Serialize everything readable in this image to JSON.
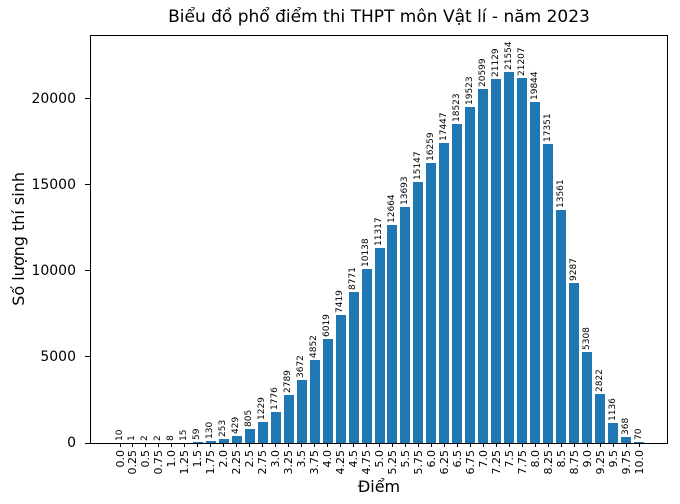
{
  "chart_data": {
    "type": "bar",
    "title": "Biểu đồ phổ điểm thi THPT môn Vật lí - năm 2023",
    "xlabel": "Điểm",
    "ylabel": "Số lượng thí sinh",
    "categories": [
      "0.0",
      "0.25",
      "0.5",
      "0.75",
      "1.0",
      "1.25",
      "1.5",
      "1.75",
      "2.0",
      "2.25",
      "2.5",
      "2.75",
      "3.0",
      "3.25",
      "3.5",
      "3.75",
      "4.0",
      "4.25",
      "4.5",
      "4.75",
      "5.0",
      "5.25",
      "5.5",
      "5.75",
      "6.0",
      "6.25",
      "6.5",
      "6.75",
      "7.0",
      "7.25",
      "7.5",
      "7.75",
      "8.0",
      "8.25",
      "8.5",
      "8.75",
      "9.0",
      "9.25",
      "9.5",
      "9.75",
      "10.0"
    ],
    "values": [
      10,
      1,
      2,
      2,
      8,
      15,
      59,
      130,
      253,
      429,
      805,
      1229,
      1776,
      2789,
      3672,
      4852,
      6019,
      7419,
      8771,
      10138,
      11317,
      12664,
      13693,
      15147,
      16259,
      17447,
      18523,
      19523,
      20599,
      21129,
      21554,
      21207,
      19844,
      17351,
      13561,
      9287,
      5308,
      2822,
      1136,
      368,
      70
    ],
    "bar_value_labels": true,
    "yticks": [
      0,
      5000,
      10000,
      15000,
      20000
    ],
    "ylim": [
      0,
      23709
    ],
    "grid": false,
    "legend": null,
    "bar_color": "#1f77b4"
  }
}
